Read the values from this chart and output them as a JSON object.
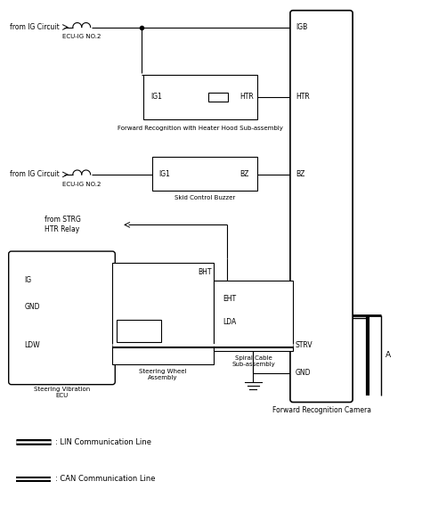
{
  "bg_color": "#ffffff",
  "fig_width": 4.74,
  "fig_height": 5.86,
  "dpi": 100,
  "labels": {
    "from_ig_1": "from IG Circuit",
    "from_ig_2": "from IG Circuit",
    "ecu_ig_1": "ECU-IG NO.2",
    "ecu_ig_2": "ECU-IG NO.2",
    "igb": "IGB",
    "htr": "HTR",
    "bz": "BZ",
    "ig1_htr": "IG1",
    "ig1_bz": "IG1",
    "htr_label": "HTR",
    "forward_rec_heater": "Forward Recognition with Heater Hood Sub-assembly",
    "skid_buzzer": "Skid Control Buzzer",
    "from_strg": "from STRG\nHTR Relay",
    "ig_pin": "IG",
    "gnd_pin": "GND",
    "ldw_pin": "LDW",
    "bht": "BHT",
    "eht": "EHT",
    "lda": "LDA",
    "strv": "STRV",
    "gnd_label": "GND",
    "sv_ecu": "Steering Vibration\nECU",
    "sw_assembly": "Steering Wheel\nAssembly",
    "spiral_cable": "Spiral Cable\nSub-assembly",
    "fwd_camera": "Forward Recognition Camera",
    "connector_a": "A",
    "lin_line": ": LIN Communication Line",
    "can_line": ": CAN Communication Line"
  }
}
